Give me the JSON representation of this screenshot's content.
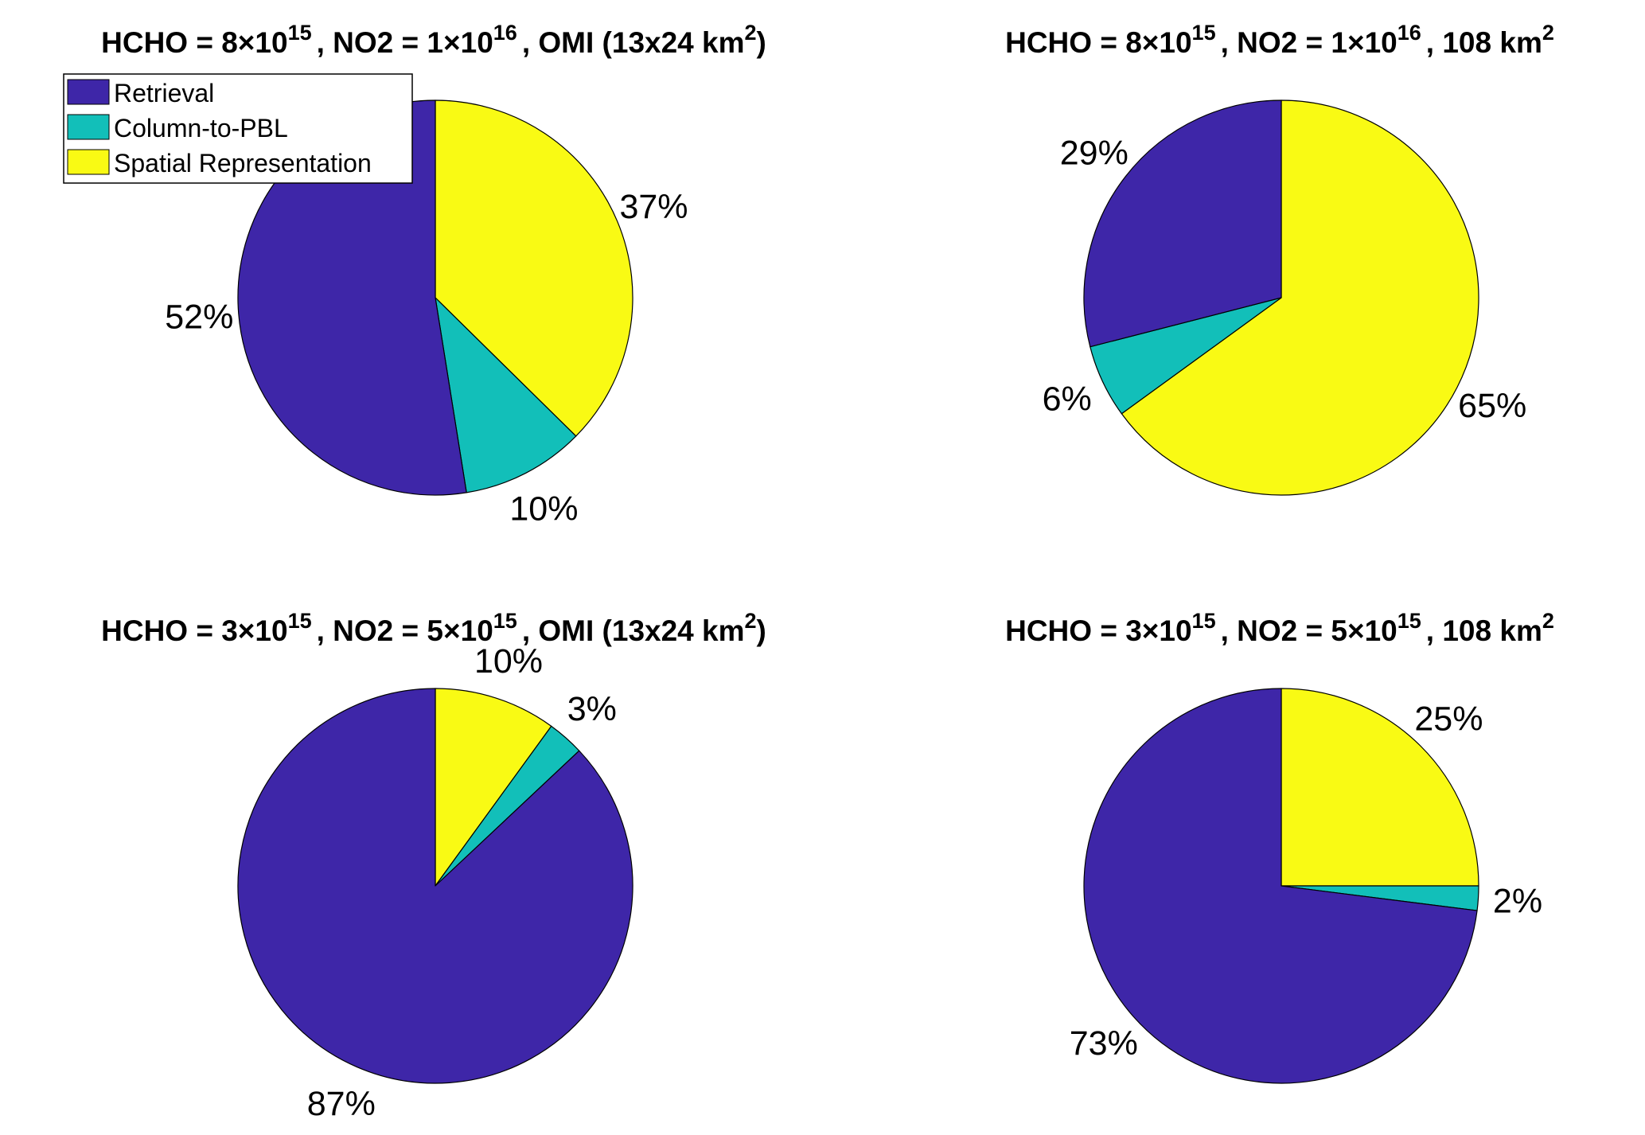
{
  "legend": {
    "entries": [
      {
        "label": "Retrieval",
        "color": "#3e26a8"
      },
      {
        "label": "Column-to-PBL",
        "color": "#12bfb9"
      },
      {
        "label": "Spatial Representation",
        "color": "#f9fa14"
      }
    ]
  },
  "chart_data": [
    {
      "type": "pie",
      "title": {
        "hcho": "HCHO = 8×10",
        "hcho_exp": "15",
        "no2": ", NO2 = 1×10",
        "no2_exp": "16",
        "res": ", OMI (13x24 km",
        "res_exp": "2",
        "res_end": ")"
      },
      "slices": [
        {
          "category": "Spatial Representation",
          "value": 37,
          "label": "37%",
          "color": "#f9fa14"
        },
        {
          "category": "Column-to-PBL",
          "value": 10,
          "label": "10%",
          "color": "#12bfb9"
        },
        {
          "category": "Retrieval",
          "value": 52,
          "label": "52%",
          "color": "#3e26a8"
        }
      ]
    },
    {
      "type": "pie",
      "title": {
        "hcho": "HCHO = 8×10",
        "hcho_exp": "15",
        "no2": ", NO2 = 1×10",
        "no2_exp": "16",
        "res": ", 108 km",
        "res_exp": "2",
        "res_end": ""
      },
      "slices": [
        {
          "category": "Spatial Representation",
          "value": 65,
          "label": "65%",
          "color": "#f9fa14"
        },
        {
          "category": "Column-to-PBL",
          "value": 6,
          "label": "6%",
          "color": "#12bfb9"
        },
        {
          "category": "Retrieval",
          "value": 29,
          "label": "29%",
          "color": "#3e26a8"
        }
      ]
    },
    {
      "type": "pie",
      "title": {
        "hcho": "HCHO = 3×10",
        "hcho_exp": "15",
        "no2": ", NO2 = 5×10",
        "no2_exp": "15",
        "res": ", OMI (13x24 km",
        "res_exp": "2",
        "res_end": ")"
      },
      "slices": [
        {
          "category": "Spatial Representation",
          "value": 10,
          "label": "10%",
          "color": "#f9fa14"
        },
        {
          "category": "Column-to-PBL",
          "value": 3,
          "label": "3%",
          "color": "#12bfb9"
        },
        {
          "category": "Retrieval",
          "value": 87,
          "label": "87%",
          "color": "#3e26a8"
        }
      ]
    },
    {
      "type": "pie",
      "title": {
        "hcho": "HCHO = 3×10",
        "hcho_exp": "15",
        "no2": ", NO2 = 5×10",
        "no2_exp": "15",
        "res": ", 108 km",
        "res_exp": "2",
        "res_end": ""
      },
      "slices": [
        {
          "category": "Spatial Representation",
          "value": 25,
          "label": "25%",
          "color": "#f9fa14"
        },
        {
          "category": "Column-to-PBL",
          "value": 2,
          "label": "2%",
          "color": "#12bfb9"
        },
        {
          "category": "Retrieval",
          "value": 73,
          "label": "73%",
          "color": "#3e26a8"
        }
      ]
    }
  ]
}
